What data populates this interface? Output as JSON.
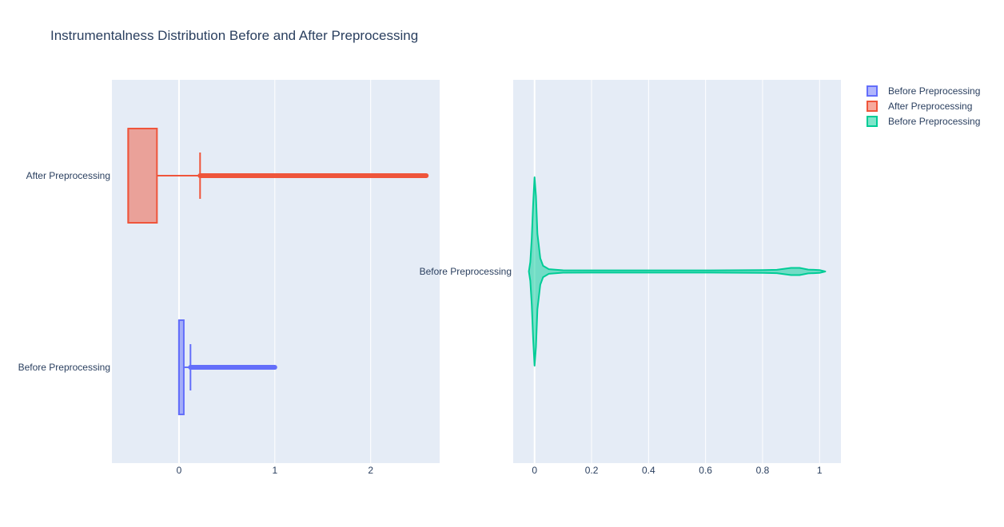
{
  "title": "Instrumentalness Distribution Before and After Preprocessing",
  "colors": {
    "plot_bg": "#e5ecf6",
    "grid": "#ffffff",
    "before": "#636efa",
    "after": "#ef553b",
    "violin": "#00cc96",
    "text": "#2a3f5f"
  },
  "legend": [
    {
      "label": "Before Preprocessing",
      "color": "#636efa"
    },
    {
      "label": "After Preprocessing",
      "color": "#ef553b"
    },
    {
      "label": "Before Preprocessing",
      "color": "#00cc96"
    }
  ],
  "chart_data": [
    {
      "type": "box",
      "orientation": "horizontal",
      "xlim": [
        -0.7,
        2.72
      ],
      "x_ticks": [
        0,
        1,
        2
      ],
      "x_tick_labels": [
        "0",
        "1",
        "2"
      ],
      "categories": [
        "Before Preprocessing",
        "After Preprocessing"
      ],
      "series": [
        {
          "name": "Before Preprocessing",
          "color": "#636efa",
          "q1": 0.0,
          "median": 0.0,
          "q3": 0.05,
          "lower_fence": 0.0,
          "upper_fence": 0.12,
          "outliers_range": [
            0.12,
            1.0
          ]
        },
        {
          "name": "After Preprocessing",
          "color": "#ef553b",
          "q1": -0.53,
          "median": -0.53,
          "q3": -0.23,
          "lower_fence": -0.53,
          "upper_fence": 0.22,
          "outliers_range": [
            0.22,
            2.58
          ]
        }
      ]
    },
    {
      "type": "violin",
      "orientation": "horizontal",
      "xlim": [
        -0.075,
        1.075
      ],
      "x_ticks": [
        0,
        0.2,
        0.4,
        0.6,
        0.8,
        1
      ],
      "x_tick_labels": [
        "0",
        "0.2",
        "0.4",
        "0.6",
        "0.8",
        "1"
      ],
      "categories": [
        "Before Preprocessing"
      ],
      "series": [
        {
          "name": "Before Preprocessing",
          "color": "#00cc96",
          "min": -0.02,
          "max": 1.02,
          "density": [
            [
              -0.02,
              0.0
            ],
            [
              -0.015,
              0.1
            ],
            [
              -0.01,
              0.35
            ],
            [
              -0.005,
              0.72
            ],
            [
              0.0,
              1.0
            ],
            [
              0.005,
              0.8
            ],
            [
              0.01,
              0.4
            ],
            [
              0.02,
              0.14
            ],
            [
              0.03,
              0.06
            ],
            [
              0.05,
              0.025
            ],
            [
              0.1,
              0.013
            ],
            [
              0.2,
              0.012
            ],
            [
              0.4,
              0.012
            ],
            [
              0.6,
              0.012
            ],
            [
              0.8,
              0.014
            ],
            [
              0.85,
              0.018
            ],
            [
              0.9,
              0.038
            ],
            [
              0.93,
              0.038
            ],
            [
              0.96,
              0.02
            ],
            [
              1.0,
              0.015
            ],
            [
              1.02,
              0.0
            ]
          ]
        }
      ]
    }
  ]
}
